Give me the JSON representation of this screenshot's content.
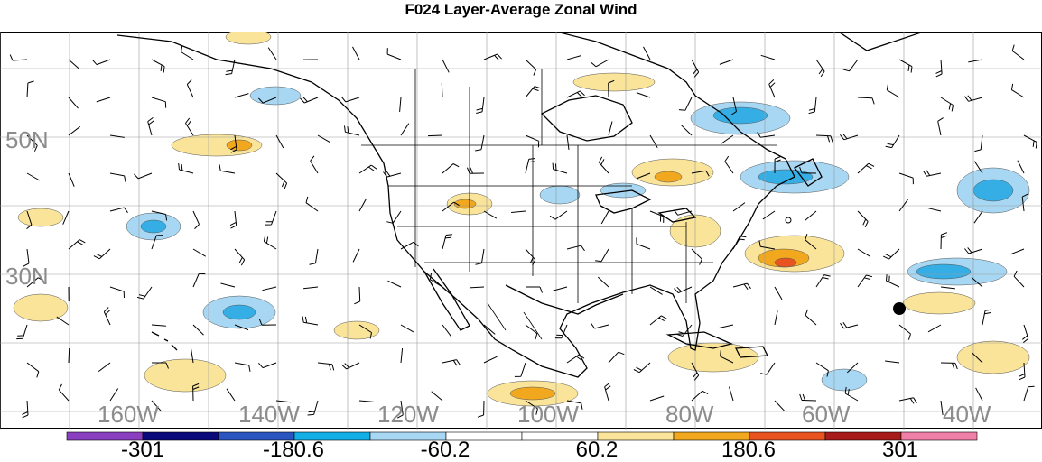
{
  "title": "F024 Layer-Average Zonal Wind",
  "lat_labels": [
    "50N",
    "30N"
  ],
  "lon_labels": [
    "160W",
    "140W",
    "120W",
    "100W",
    "80W",
    "60W",
    "40W"
  ],
  "colorbar": {
    "labels": [
      "-301",
      "-180.6",
      "-60.2",
      "60.2",
      "180.6",
      "301"
    ],
    "colors": [
      "#8a3fc0",
      "#0a0a7a",
      "#2a55c0",
      "#12aee6",
      "#a7d7f2",
      "#ffffff",
      "#ffffff",
      "#f9e49a",
      "#f2a81e",
      "#e8531f",
      "#a81b1b",
      "#f07fa8"
    ]
  },
  "map_colors": {
    "ocean": "#ffffff",
    "grid": "#9a9a9a",
    "coast": "#000000",
    "light_blue": "#a7d7f2",
    "blue": "#35aee6",
    "yellow": "#f9e49a",
    "orange": "#f2a81e",
    "dark_orange": "#e8531f"
  }
}
